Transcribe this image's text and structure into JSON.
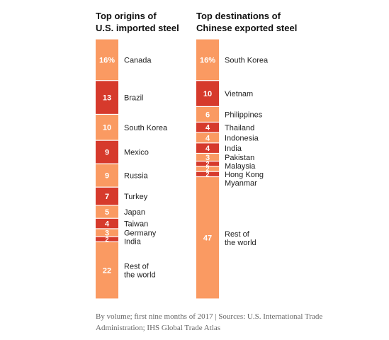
{
  "colors": {
    "light": "#fa9a62",
    "dark": "#d63a2c",
    "label": "#222222",
    "value": "#ffffff"
  },
  "chart_data": [
    {
      "type": "bar",
      "stacked": true,
      "title": "Top origins of\nU.S. imported steel",
      "unit": "%",
      "categories": [
        "Canada",
        "Brazil",
        "South Korea",
        "Mexico",
        "Russia",
        "Turkey",
        "Japan",
        "Taiwan",
        "Germany",
        "India",
        "Rest of the world"
      ],
      "values": [
        16,
        13,
        10,
        9,
        9,
        7,
        5,
        4,
        3,
        2,
        22
      ],
      "value_labels": [
        "16%",
        "13",
        "10",
        "9",
        "9",
        "7",
        "5",
        "4",
        "3",
        "2",
        "22"
      ],
      "category_labels": [
        "Canada",
        "Brazil",
        "South Korea",
        "Mexico",
        "Russia",
        "Turkey",
        "Japan",
        "Taiwan",
        "Germany",
        "India",
        "Rest of\nthe world"
      ]
    },
    {
      "type": "bar",
      "stacked": true,
      "title": "Top destinations of\nChinese exported steel",
      "unit": "%",
      "categories": [
        "South Korea",
        "Vietnam",
        "Philippines",
        "Thailand",
        "Indonesia",
        "India",
        "Pakistan",
        "Malaysia",
        "Hong Kong",
        "Myanmar",
        "Rest of the world"
      ],
      "values": [
        16,
        10,
        6,
        4,
        4,
        4,
        3,
        2,
        2,
        2,
        47
      ],
      "value_labels": [
        "16%",
        "10",
        "6",
        "4",
        "4",
        "4",
        "3",
        "2",
        "2",
        "2",
        "47"
      ],
      "category_labels": [
        "South Korea",
        "Vietnam",
        "Philippines",
        "Thailand",
        "Indonesia",
        "India",
        "Pakistan",
        "Malaysia",
        "Hong Kong",
        "Myanmar",
        "Rest of\nthe world"
      ]
    }
  ],
  "note": "By volume; first nine months of 2017 | Sources: U.S. International Trade Administration; IHS Global Trade Atlas"
}
